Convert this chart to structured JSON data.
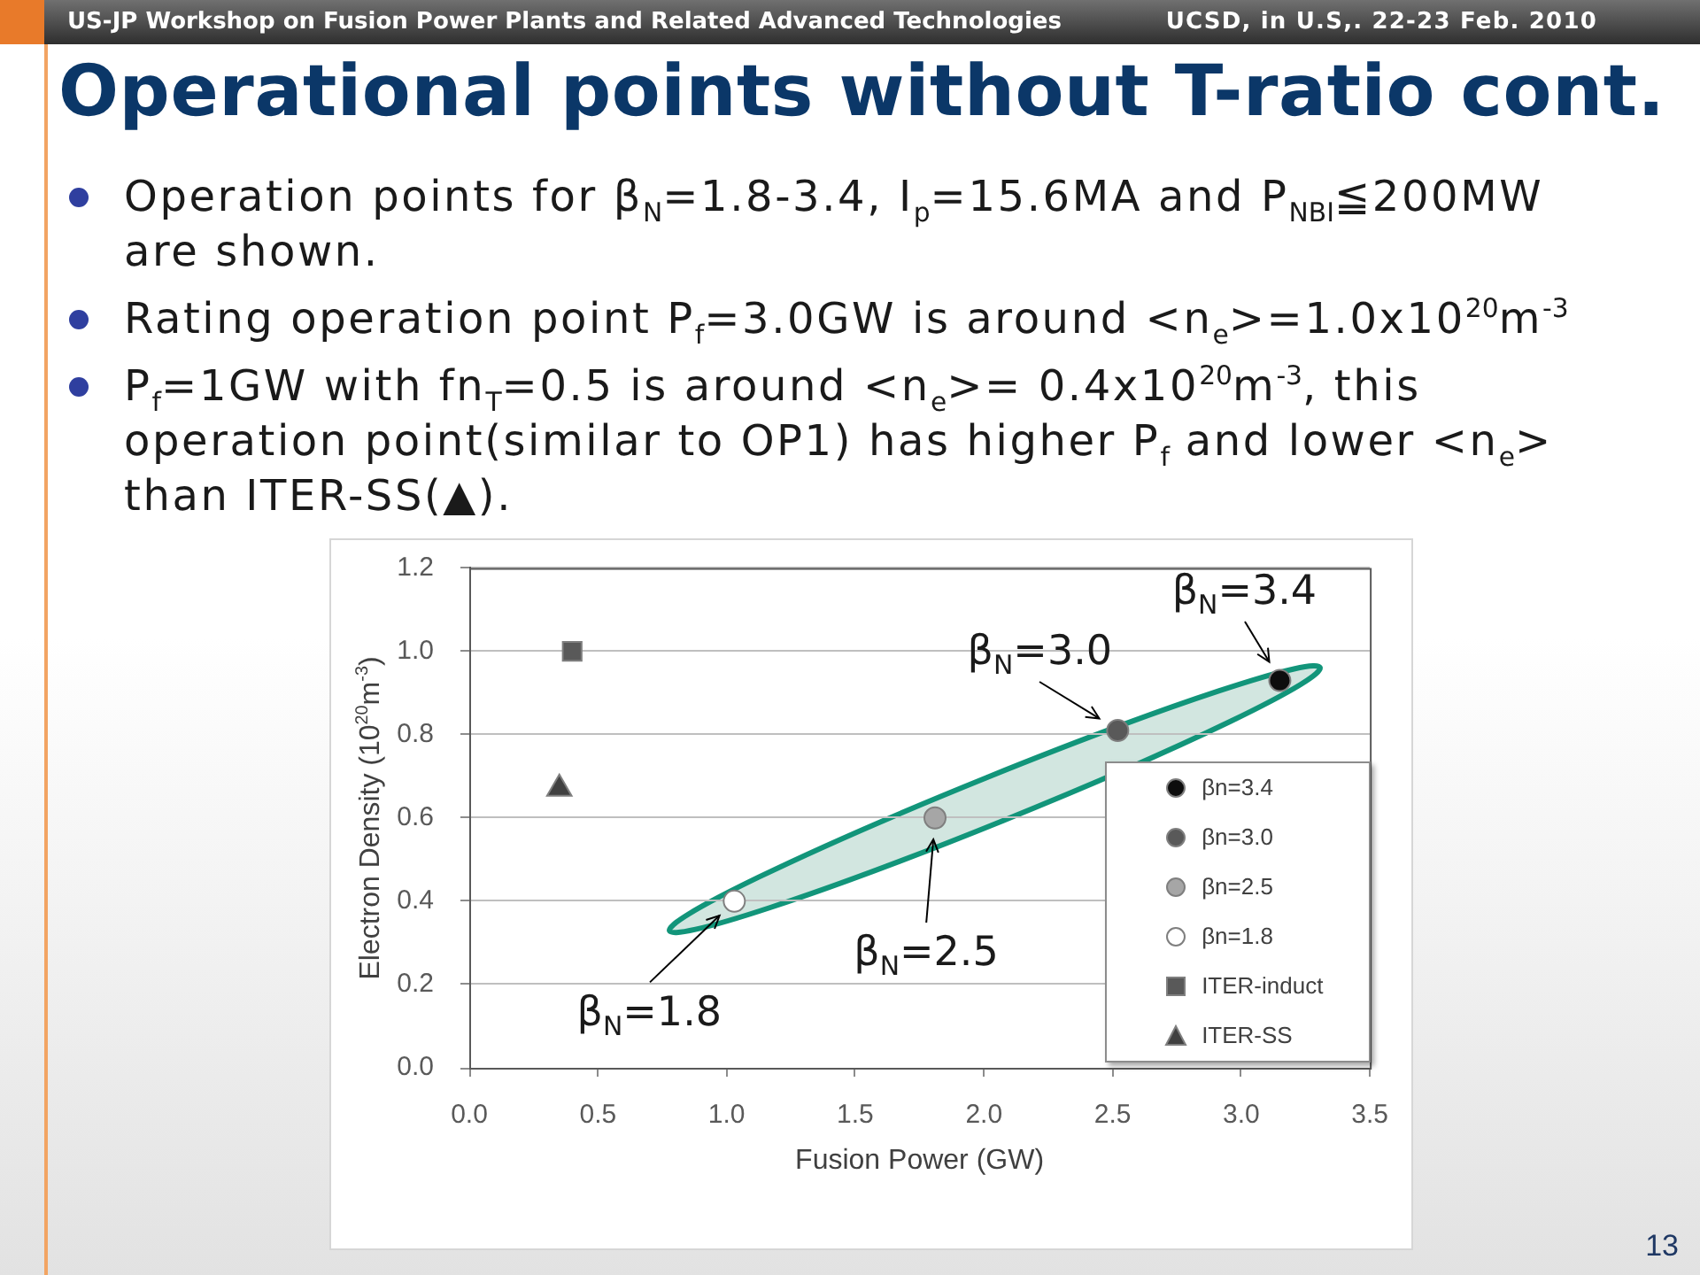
{
  "chart_data": {
    "type": "scatter",
    "title": "Operational points without T-ratio cont.",
    "xlabel": "Fusion Power (GW)",
    "ylabel": "Electron Density (10$^{20}$m$^{-3}$)",
    "xlim": [
      0,
      3.5
    ],
    "xticks": [
      {
        "value": 0,
        "label": "0.0"
      },
      0.5,
      {
        "value": 1,
        "label": "1.0"
      },
      1.5,
      {
        "value": 2,
        "label": "2.0"
      },
      2.5,
      {
        "value": 3,
        "label": "3.0"
      },
      3.5
    ],
    "ylim": [
      0,
      1.2
    ],
    "yticks": [
      {
        "value": 0,
        "label": "0.0"
      },
      0.2,
      0.4,
      0.6,
      0.8,
      {
        "value": 1,
        "label": "1.0"
      },
      1.2
    ],
    "grid": "y",
    "legend": "bottom right",
    "series": [
      {
        "name": "βn=3.4",
        "color": "#0d0d0d",
        "marker": "circle",
        "x": [
          3.15
        ],
        "values": [
          0.93
        ]
      },
      {
        "name": "βn=3.0",
        "color": "#595959",
        "marker": "circle",
        "x": [
          2.52
        ],
        "values": [
          0.81
        ]
      },
      {
        "name": "βn=2.5",
        "color": "#a6a6a6",
        "marker": "circle",
        "x": [
          1.81
        ],
        "values": [
          0.6
        ]
      },
      {
        "name": "βn=1.8",
        "color": "#ffffff",
        "marker": "circle",
        "x": [
          1.03
        ],
        "values": [
          0.4
        ]
      },
      {
        "name": "ITER-induct",
        "color": "#595959",
        "marker": "square",
        "x": [
          0.4
        ],
        "values": [
          1.0
        ]
      },
      {
        "name": "ITER-SS",
        "color": "#404040",
        "marker": "triangle",
        "x": [
          0.35
        ],
        "values": [
          0.67
        ]
      }
    ],
    "annotations": [
      "US-JP Workshop on Fusion Power Plants and Related Advanced Technologies",
      "UCSD, in U.S,. 22-23 Feb. 2010",
      "Operation points for β$_{N}$=1.8-3.4, I$_{p}$=15.6MA and P$_{NBI}$≦200MW are shown.",
      "Rating operation point P$_{f}$=3.0GW is around <n$_{e}$>=1.0x10$^{20}$m$^{-3}$",
      "P$_{f}$=1GW with fn$_{T}$=0.5 is around <n$_{e}$>= 0.4x10$^{20}$m$^{-3}$, this operation point(similar to OP1) has higher P$_{f}$ and lower <n$_{e}$> than ITER-SS(▲).",
      {
        "text": "β$_{N}$=3.4",
        "x": 3.15,
        "y": 0.93
      },
      {
        "text": "β$_{N}$=3.0",
        "x": 2.52,
        "y": 0.81
      },
      {
        "text": "β$_{N}$=2.5",
        "x": 1.81,
        "y": 0.6
      },
      {
        "text": "β$_{N}$=1.8",
        "x": 1.03,
        "y": 0.4
      },
      "13"
    ]
  }
}
